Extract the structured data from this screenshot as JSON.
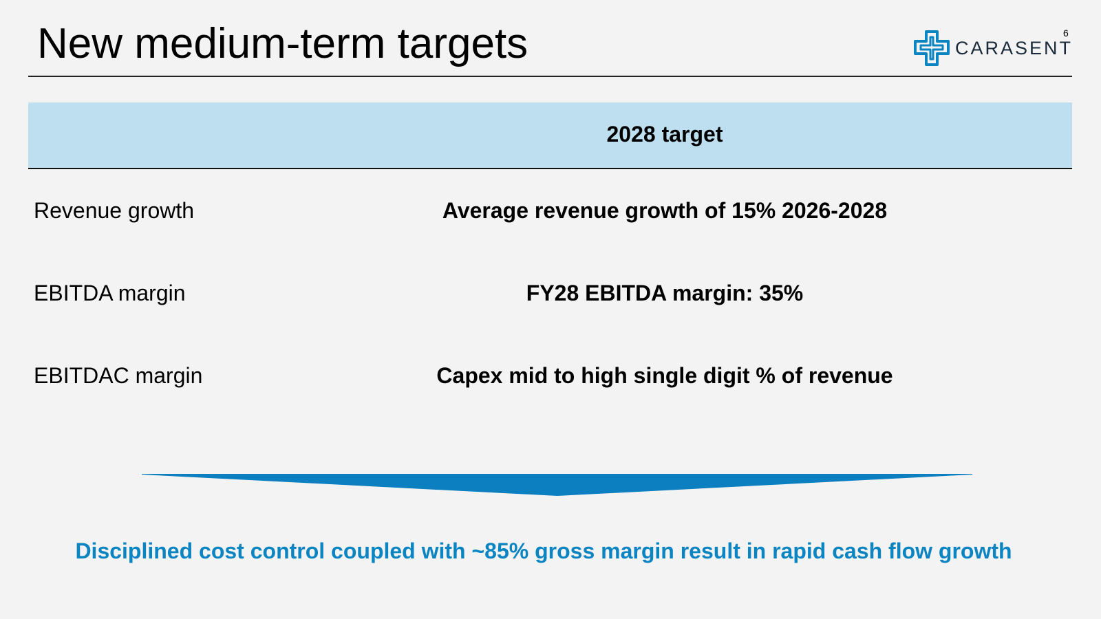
{
  "header": {
    "title": "New medium-term targets",
    "page_number": "6",
    "logo_text": "CARASENT"
  },
  "table": {
    "column_header": "2028 target",
    "rows": [
      [
        "Revenue growth",
        "Average revenue growth of 15% 2026-2028"
      ],
      [
        "EBITDA margin",
        "FY28 EBITDA margin: 35%"
      ],
      [
        "EBITDAC margin",
        "Capex mid to high single digit % of revenue"
      ]
    ]
  },
  "conclusion": "Disciplined cost control coupled with ~85% gross margin result in rapid cash flow growth"
}
